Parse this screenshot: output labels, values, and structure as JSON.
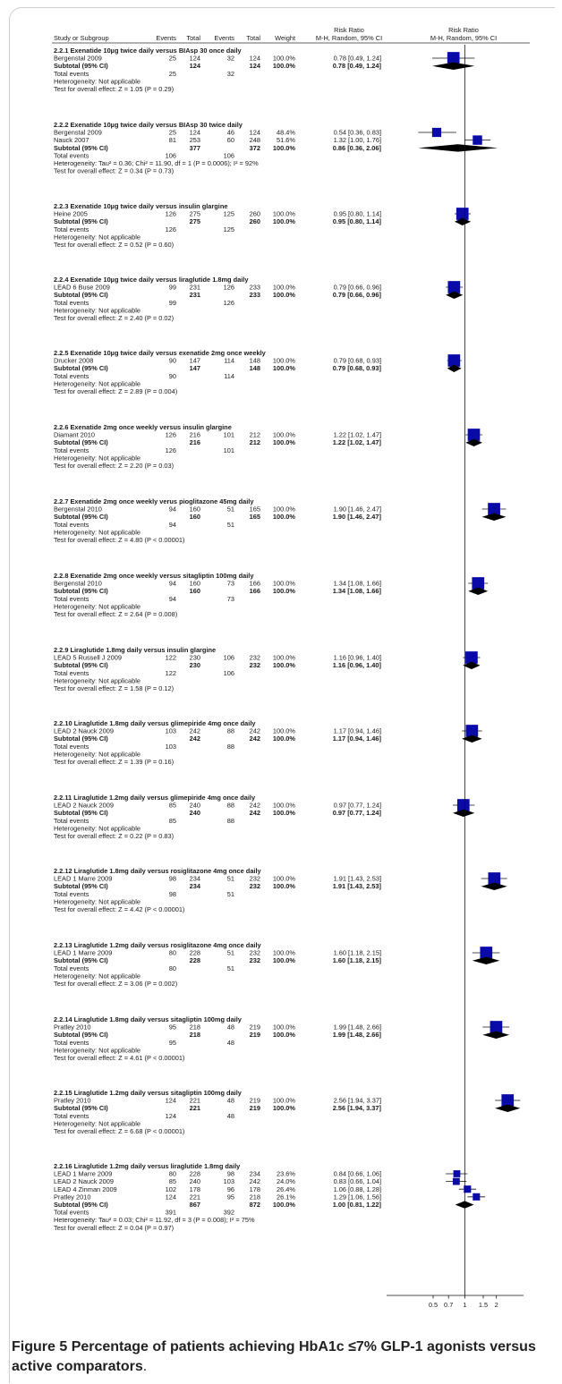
{
  "header": {
    "study": "Study or Subgroup",
    "events1": "Events",
    "total1": "Total",
    "events2": "Events",
    "total2": "Total",
    "weight": "Weight",
    "rr_title": "Risk Ratio",
    "rr_method": "M-H, Random, 95% CI",
    "plot_title": "Risk Ratio",
    "plot_method": "M-H, Random, 95% CI"
  },
  "caption": {
    "label": "Figure 5",
    "bold_text": "Percentage of patients achieving HbA1c ≤7% GLP-1 agonists versus active comparators",
    "end": "."
  },
  "chart_data": {
    "type": "forest",
    "x_scale": "log",
    "xlim": [
      0.3,
      4.0
    ],
    "x_ticks": [
      0.5,
      0.7,
      1,
      1.5,
      2
    ],
    "x_tick_labels": [
      "0.5",
      "0.7",
      "1",
      "1.5",
      "2"
    ],
    "reference_line": 1,
    "groups": [
      {
        "title": "2.2.1 Exenatide 10µg twice daily versus BIAsp 30 once daily",
        "studies": [
          {
            "name": "Bergenstal 2009",
            "e1": "25",
            "t1": "124",
            "e2": "32",
            "t2": "124",
            "w": "100.0%",
            "ci": "0.78 [0.49, 1.24]",
            "rr": 0.78,
            "lo": 0.49,
            "hi": 1.24,
            "weight": 100
          }
        ],
        "subtotal": {
          "t1": "124",
          "t2": "124",
          "w": "100.0%",
          "ci": "0.78 [0.49, 1.24]",
          "rr": 0.78,
          "lo": 0.49,
          "hi": 1.24
        },
        "total_events": [
          "25",
          "32"
        ],
        "heterogeneity": "Heterogeneity: Not applicable",
        "overall": "Test for overall effect: Z = 1.05 (P = 0.29)"
      },
      {
        "title": "2.2.2 Exenatide 10µg twice daily versus BIAsp 30 twice daily",
        "studies": [
          {
            "name": "Bergenstal 2009",
            "e1": "25",
            "t1": "124",
            "e2": "46",
            "t2": "124",
            "w": "48.4%",
            "ci": "0.54 [0.36, 0.83]",
            "rr": 0.54,
            "lo": 0.36,
            "hi": 0.83,
            "weight": 48.4
          },
          {
            "name": "Nauck 2007",
            "e1": "81",
            "t1": "253",
            "e2": "60",
            "t2": "248",
            "w": "51.6%",
            "ci": "1.32 [1.00, 1.76]",
            "rr": 1.32,
            "lo": 1.0,
            "hi": 1.76,
            "weight": 51.6
          }
        ],
        "subtotal": {
          "t1": "377",
          "t2": "372",
          "w": "100.0%",
          "ci": "0.86 [0.36, 2.06]",
          "rr": 0.86,
          "lo": 0.36,
          "hi": 2.06
        },
        "total_events": [
          "106",
          "106"
        ],
        "heterogeneity": "Heterogeneity: Tau² = 0.36; Chi² = 11.90, df = 1 (P = 0.0006); I² = 92%",
        "overall": "Test for overall effect: Z = 0.34 (P = 0.73)"
      },
      {
        "title": "2.2.3 Exenatide 10µg twice daily versus insulin glargine",
        "studies": [
          {
            "name": "Heine 2005",
            "e1": "126",
            "t1": "275",
            "e2": "125",
            "t2": "260",
            "w": "100.0%",
            "ci": "0.95 [0.80, 1.14]",
            "rr": 0.95,
            "lo": 0.8,
            "hi": 1.14,
            "weight": 100
          }
        ],
        "subtotal": {
          "t1": "275",
          "t2": "260",
          "w": "100.0%",
          "ci": "0.95 [0.80, 1.14]",
          "rr": 0.95,
          "lo": 0.8,
          "hi": 1.14
        },
        "total_events": [
          "126",
          "125"
        ],
        "heterogeneity": "Heterogeneity: Not applicable",
        "overall": "Test for overall effect: Z = 0.52 (P = 0.60)"
      },
      {
        "title": "2.2.4 Exenatide 10µg twice daily versus liraglutide 1.8mg daily",
        "studies": [
          {
            "name": "LEAD 6 Buse 2009",
            "e1": "99",
            "t1": "231",
            "e2": "126",
            "t2": "233",
            "w": "100.0%",
            "ci": "0.79 [0.66, 0.96]",
            "rr": 0.79,
            "lo": 0.66,
            "hi": 0.96,
            "weight": 100
          }
        ],
        "subtotal": {
          "t1": "231",
          "t2": "233",
          "w": "100.0%",
          "ci": "0.79 [0.66, 0.96]",
          "rr": 0.79,
          "lo": 0.66,
          "hi": 0.96
        },
        "total_events": [
          "99",
          "126"
        ],
        "heterogeneity": "Heterogeneity: Not applicable",
        "overall": "Test for overall effect: Z = 2.40 (P = 0.02)"
      },
      {
        "title": "2.2.5 Exenatide 10µg twice daily versus exenatide 2mg once weekly",
        "studies": [
          {
            "name": "Drucker 2008",
            "e1": "90",
            "t1": "147",
            "e2": "114",
            "t2": "148",
            "w": "100.0%",
            "ci": "0.79 [0.68, 0.93]",
            "rr": 0.79,
            "lo": 0.68,
            "hi": 0.93,
            "weight": 100
          }
        ],
        "subtotal": {
          "t1": "147",
          "t2": "148",
          "w": "100.0%",
          "ci": "0.79 [0.68, 0.93]",
          "rr": 0.79,
          "lo": 0.68,
          "hi": 0.93
        },
        "total_events": [
          "90",
          "114"
        ],
        "heterogeneity": "Heterogeneity: Not applicable",
        "overall": "Test for overall effect: Z = 2.89 (P = 0.004)"
      },
      {
        "title": "2.2.6 Exenatide 2mg once weekly versus insulin glargine",
        "studies": [
          {
            "name": "Diamant 2010",
            "e1": "126",
            "t1": "216",
            "e2": "101",
            "t2": "212",
            "w": "100.0%",
            "ci": "1.22 [1.02, 1.47]",
            "rr": 1.22,
            "lo": 1.02,
            "hi": 1.47,
            "weight": 100
          }
        ],
        "subtotal": {
          "t1": "216",
          "t2": "212",
          "w": "100.0%",
          "ci": "1.22 [1.02, 1.47]",
          "rr": 1.22,
          "lo": 1.02,
          "hi": 1.47
        },
        "total_events": [
          "126",
          "101"
        ],
        "heterogeneity": "Heterogeneity: Not applicable",
        "overall": "Test for overall effect: Z = 2.20 (P = 0.03)"
      },
      {
        "title": "2.2.7 Exenatide 2mg once weekly verus pioglitazone 45mg daily",
        "studies": [
          {
            "name": "Bergenstal 2010",
            "e1": "94",
            "t1": "160",
            "e2": "51",
            "t2": "165",
            "w": "100.0%",
            "ci": "1.90 [1.46, 2.47]",
            "rr": 1.9,
            "lo": 1.46,
            "hi": 2.47,
            "weight": 100
          }
        ],
        "subtotal": {
          "t1": "160",
          "t2": "165",
          "w": "100.0%",
          "ci": "1.90 [1.46, 2.47]",
          "rr": 1.9,
          "lo": 1.46,
          "hi": 2.47
        },
        "total_events": [
          "94",
          "51"
        ],
        "heterogeneity": "Heterogeneity: Not applicable",
        "overall": "Test for overall effect: Z = 4.80 (P < 0.00001)"
      },
      {
        "title": "2.2.8 Exenatide 2mg once weekly versus sitagliptin 100mg daily",
        "studies": [
          {
            "name": "Bergenstal 2010",
            "e1": "94",
            "t1": "160",
            "e2": "73",
            "t2": "166",
            "w": "100.0%",
            "ci": "1.34 [1.08, 1.66]",
            "rr": 1.34,
            "lo": 1.08,
            "hi": 1.66,
            "weight": 100
          }
        ],
        "subtotal": {
          "t1": "160",
          "t2": "166",
          "w": "100.0%",
          "ci": "1.34 [1.08, 1.66]",
          "rr": 1.34,
          "lo": 1.08,
          "hi": 1.66
        },
        "total_events": [
          "94",
          "73"
        ],
        "heterogeneity": "Heterogeneity: Not applicable",
        "overall": "Test for overall effect: Z = 2.64 (P = 0.008)"
      },
      {
        "title": "2.2.9 Liraglutide 1.8mg daily versus insulin glargine",
        "studies": [
          {
            "name": "LEAD 5 Russell J 2009",
            "e1": "122",
            "t1": "230",
            "e2": "106",
            "t2": "232",
            "w": "100.0%",
            "ci": "1.16 [0.96, 1.40]",
            "rr": 1.16,
            "lo": 0.96,
            "hi": 1.4,
            "weight": 100
          }
        ],
        "subtotal": {
          "t1": "230",
          "t2": "232",
          "w": "100.0%",
          "ci": "1.16 [0.96, 1.40]",
          "rr": 1.16,
          "lo": 0.96,
          "hi": 1.4
        },
        "total_events": [
          "122",
          "106"
        ],
        "heterogeneity": "Heterogeneity: Not applicable",
        "overall": "Test for overall effect: Z = 1.58 (P = 0.12)"
      },
      {
        "title": "2.2.10 Liraglutide 1.8mg daily versus glimepiride 4mg once daily",
        "studies": [
          {
            "name": "LEAD 2 Nauck 2009",
            "e1": "103",
            "t1": "242",
            "e2": "88",
            "t2": "242",
            "w": "100.0%",
            "ci": "1.17 [0.94, 1.46]",
            "rr": 1.17,
            "lo": 0.94,
            "hi": 1.46,
            "weight": 100
          }
        ],
        "subtotal": {
          "t1": "242",
          "t2": "242",
          "w": "100.0%",
          "ci": "1.17 [0.94, 1.46]",
          "rr": 1.17,
          "lo": 0.94,
          "hi": 1.46
        },
        "total_events": [
          "103",
          "88"
        ],
        "heterogeneity": "Heterogeneity: Not applicable",
        "overall": "Test for overall effect: Z = 1.39 (P = 0.16)"
      },
      {
        "title": "2.2.11 Liraglutide 1.2mg daily versus glimepiride 4mg once daily",
        "studies": [
          {
            "name": "LEAD 2 Nauck 2009",
            "e1": "85",
            "t1": "240",
            "e2": "88",
            "t2": "242",
            "w": "100.0%",
            "ci": "0.97 [0.77, 1.24]",
            "rr": 0.97,
            "lo": 0.77,
            "hi": 1.24,
            "weight": 100
          }
        ],
        "subtotal": {
          "t1": "240",
          "t2": "242",
          "w": "100.0%",
          "ci": "0.97 [0.77, 1.24]",
          "rr": 0.97,
          "lo": 0.77,
          "hi": 1.24
        },
        "total_events": [
          "85",
          "88"
        ],
        "heterogeneity": "Heterogeneity: Not applicable",
        "overall": "Test for overall effect: Z = 0.22 (P = 0.83)"
      },
      {
        "title": "2.2.12 Liraglutide 1.8mg daily versus rosiglitazone 4mg once daily",
        "studies": [
          {
            "name": "LEAD 1 Marre 2009",
            "e1": "98",
            "t1": "234",
            "e2": "51",
            "t2": "232",
            "w": "100.0%",
            "ci": "1.91 [1.43, 2.53]",
            "rr": 1.91,
            "lo": 1.43,
            "hi": 2.53,
            "weight": 100
          }
        ],
        "subtotal": {
          "t1": "234",
          "t2": "232",
          "w": "100.0%",
          "ci": "1.91 [1.43, 2.53]",
          "rr": 1.91,
          "lo": 1.43,
          "hi": 2.53
        },
        "total_events": [
          "98",
          "51"
        ],
        "heterogeneity": "Heterogeneity: Not applicable",
        "overall": "Test for overall effect: Z = 4.42 (P < 0.00001)"
      },
      {
        "title": "2.2.13 Liraglutide 1.2mg daily versus rosiglitazone 4mg once daily",
        "studies": [
          {
            "name": "LEAD 1 Marre 2009",
            "e1": "80",
            "t1": "228",
            "e2": "51",
            "t2": "232",
            "w": "100.0%",
            "ci": "1.60 [1.18, 2.15]",
            "rr": 1.6,
            "lo": 1.18,
            "hi": 2.15,
            "weight": 100
          }
        ],
        "subtotal": {
          "t1": "228",
          "t2": "232",
          "w": "100.0%",
          "ci": "1.60 [1.18, 2.15]",
          "rr": 1.6,
          "lo": 1.18,
          "hi": 2.15
        },
        "total_events": [
          "80",
          "51"
        ],
        "heterogeneity": "Heterogeneity: Not applicable",
        "overall": "Test for overall effect: Z = 3.06 (P = 0.002)"
      },
      {
        "title": "2.2.14 Liraglutide 1.8mg daily versus sitagliptin 100mg daily",
        "studies": [
          {
            "name": "Pratley 2010",
            "e1": "95",
            "t1": "218",
            "e2": "48",
            "t2": "219",
            "w": "100.0%",
            "ci": "1.99 [1.48, 2.66]",
            "rr": 1.99,
            "lo": 1.48,
            "hi": 2.66,
            "weight": 100
          }
        ],
        "subtotal": {
          "t1": "218",
          "t2": "219",
          "w": "100.0%",
          "ci": "1.99 [1.48, 2.66]",
          "rr": 1.99,
          "lo": 1.48,
          "hi": 2.66
        },
        "total_events": [
          "95",
          "48"
        ],
        "heterogeneity": "Heterogeneity: Not applicable",
        "overall": "Test for overall effect: Z = 4.61 (P < 0.00001)"
      },
      {
        "title": "2.2.15 Liraglutide 1.2mg daily versus sitagliptin 100mg daily",
        "studies": [
          {
            "name": "Pratley 2010",
            "e1": "124",
            "t1": "221",
            "e2": "48",
            "t2": "219",
            "w": "100.0%",
            "ci": "2.56 [1.94, 3.37]",
            "rr": 2.56,
            "lo": 1.94,
            "hi": 3.37,
            "weight": 100
          }
        ],
        "subtotal": {
          "t1": "221",
          "t2": "219",
          "w": "100.0%",
          "ci": "2.56 [1.94, 3.37]",
          "rr": 2.56,
          "lo": 1.94,
          "hi": 3.37
        },
        "total_events": [
          "124",
          "48"
        ],
        "heterogeneity": "Heterogeneity: Not applicable",
        "overall": "Test for overall effect: Z = 6.68 (P < 0.00001)"
      },
      {
        "title": "2.2.16 Liraglutide 1.2mg daily versus liraglutide 1.8mg daily",
        "studies": [
          {
            "name": "LEAD 1 Marre 2009",
            "e1": "80",
            "t1": "228",
            "e2": "98",
            "t2": "234",
            "w": "23.6%",
            "ci": "0.84 [0.66, 1.06]",
            "rr": 0.84,
            "lo": 0.66,
            "hi": 1.06,
            "weight": 23.6
          },
          {
            "name": "LEAD 2 Nauck 2009",
            "e1": "85",
            "t1": "240",
            "e2": "103",
            "t2": "242",
            "w": "24.0%",
            "ci": "0.83 [0.66, 1.04]",
            "rr": 0.83,
            "lo": 0.66,
            "hi": 1.04,
            "weight": 24.0
          },
          {
            "name": "LEAD 4 Zinman 2009",
            "e1": "102",
            "t1": "178",
            "e2": "96",
            "t2": "178",
            "w": "26.4%",
            "ci": "1.06 [0.88, 1.28]",
            "rr": 1.06,
            "lo": 0.88,
            "hi": 1.28,
            "weight": 26.4
          },
          {
            "name": "Pratley 2010",
            "e1": "124",
            "t1": "221",
            "e2": "95",
            "t2": "218",
            "w": "26.1%",
            "ci": "1.29 [1.06, 1.56]",
            "rr": 1.29,
            "lo": 1.06,
            "hi": 1.56,
            "weight": 26.1
          }
        ],
        "subtotal": {
          "t1": "867",
          "t2": "872",
          "w": "100.0%",
          "ci": "1.00 [0.81, 1.22]",
          "rr": 1.0,
          "lo": 0.81,
          "hi": 1.22
        },
        "total_events": [
          "391",
          "392"
        ],
        "heterogeneity": "Heterogeneity: Tau² = 0.03; Chi² = 11.92, df = 3 (P = 0.008); I² = 75%",
        "overall": "Test for overall effect: Z = 0.04 (P = 0.97)"
      }
    ]
  }
}
